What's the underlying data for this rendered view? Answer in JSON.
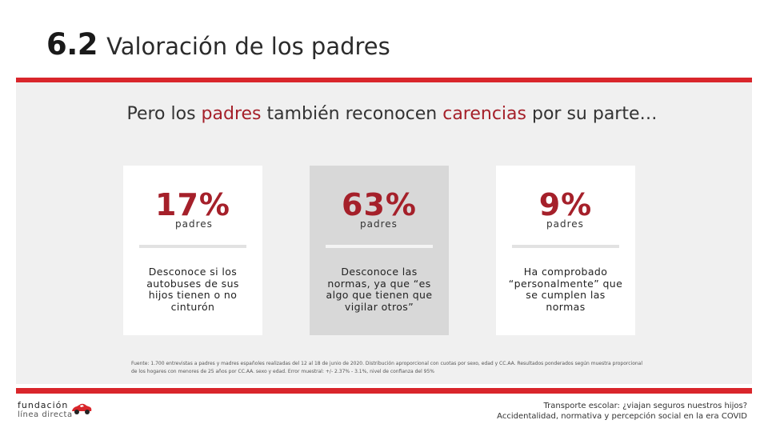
{
  "header": {
    "section_number": "6.2",
    "title": "Valoración de los padres"
  },
  "headline": {
    "part1": "Pero los ",
    "highlight1": "padres",
    "part2": " también reconocen ",
    "highlight2": "carencias",
    "part3": " por su parte…"
  },
  "cards": [
    {
      "stat": "17%",
      "unit": "padres",
      "text": "Desconoce si los autobuses de sus hijos tienen o no cinturón"
    },
    {
      "stat": "63%",
      "unit": "padres",
      "text": "Desconoce las normas, ya que “es algo que tienen que vigilar otros”"
    },
    {
      "stat": "9%",
      "unit": "padres",
      "text": "Ha comprobado “personalmente” que se cumplen las normas"
    }
  ],
  "footnote": "Fuente: 1.700 entrevistas a padres y madres españoles realizadas del 12 al 18 de junio de 2020. Distribución aproporcional con cuotas por sexo, edad y CC.AA. Resultados ponderados según muestra proporcional de los hogares con menores de 25 años por CC.AA. sexo y edad. Error muestral: +/- 2.37% - 3.1%, nivel de confianza del 95%",
  "logo": {
    "line1": "fundación",
    "line2": "línea directa"
  },
  "footer": {
    "line1": "Transporte escolar: ¿viajan seguros nuestros hijos?",
    "line2": "Accidentalidad, normativa y percepción social en la era COVID"
  },
  "colors": {
    "accent": "#d9262b",
    "highlight_text": "#a5202a",
    "panel": "#f0f0f0",
    "card_alt": "#d8d8d8"
  }
}
